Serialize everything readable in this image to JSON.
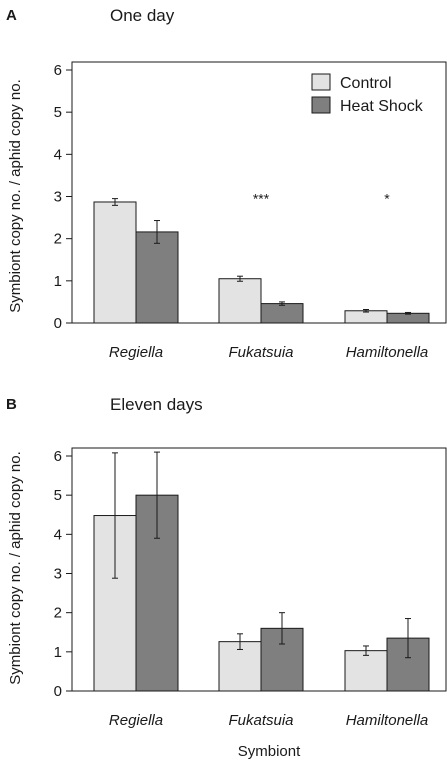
{
  "colors": {
    "control": "#e3e3e3",
    "heat_shock": "#7f7f7f",
    "axis": "#1a1a1a"
  },
  "legend": {
    "position": "top-right",
    "items": [
      "Control",
      "Heat Shock"
    ]
  },
  "xlabel": "Symbiont",
  "chart_data": [
    {
      "type": "bar",
      "panel": "A",
      "title": "One day",
      "ylabel": "Symbiont copy no. / aphid copy no.",
      "ylim": [
        0,
        6
      ],
      "yticks": [
        "0",
        "1",
        "2",
        "3",
        "4",
        "5",
        "6"
      ],
      "categories": [
        "Regiella",
        "Fukatsuia",
        "Hamiltonella"
      ],
      "series": [
        {
          "name": "Control",
          "values": [
            2.87,
            1.05,
            0.29
          ],
          "error": [
            0.08,
            0.06,
            0.03
          ]
        },
        {
          "name": "Heat Shock",
          "values": [
            2.16,
            0.46,
            0.23
          ],
          "error": [
            0.27,
            0.04,
            0.02
          ]
        }
      ],
      "annotations": [
        "",
        "***",
        "*"
      ]
    },
    {
      "type": "bar",
      "panel": "B",
      "title": "Eleven days",
      "ylabel": "Symbiont copy no. / aphid copy no.",
      "ylim": [
        0,
        6
      ],
      "yticks": [
        "0",
        "1",
        "2",
        "3",
        "4",
        "5",
        "6"
      ],
      "categories": [
        "Regiella",
        "Fukatsuia",
        "Hamiltonella"
      ],
      "series": [
        {
          "name": "Control",
          "values": [
            4.48,
            1.26,
            1.03
          ],
          "error": [
            1.6,
            0.2,
            0.12
          ]
        },
        {
          "name": "Heat Shock",
          "values": [
            5.0,
            1.6,
            1.35
          ],
          "error": [
            1.1,
            0.4,
            0.5
          ]
        }
      ],
      "annotations": [
        "",
        "",
        ""
      ]
    }
  ]
}
